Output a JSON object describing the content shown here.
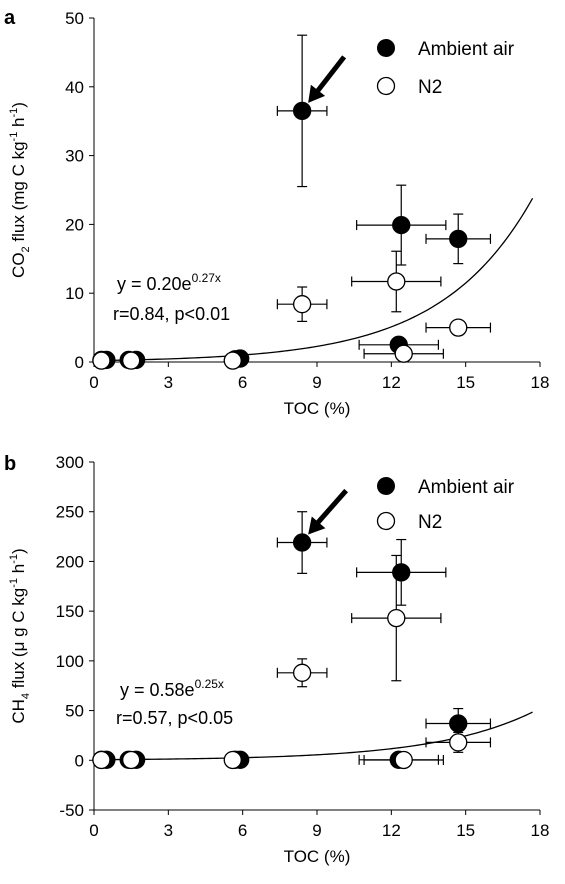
{
  "chart_data": [
    {
      "panel_label": "a",
      "type": "scatter",
      "xlabel": "TOC (%)",
      "ylabel_parts": [
        "CO",
        "2",
        " flux (mg C kg",
        "-1",
        " h",
        "-1",
        ")"
      ],
      "xlim": [
        0,
        18
      ],
      "ylim": [
        0,
        50
      ],
      "xticks": [
        0,
        3,
        6,
        9,
        12,
        15,
        18
      ],
      "yticks": [
        0,
        10,
        20,
        30,
        40,
        50
      ],
      "grid": false,
      "legend_placement": "top-right",
      "legend": [
        "Ambient air",
        "N2"
      ],
      "equation": {
        "prefix": "y = 0.20e",
        "superscript": "0.27x",
        "stats": "r=0.84, p<0.01"
      },
      "fit": {
        "a": 0.2,
        "b": 0.27,
        "x_range": [
          0.3,
          17.7
        ]
      },
      "arrow_at": [
        8.4,
        36.5
      ],
      "series": [
        {
          "name": "Ambient air",
          "marker": "filled",
          "points": [
            {
              "x": 0.3,
              "y": 0.3
            },
            {
              "x": 0.5,
              "y": 0.3
            },
            {
              "x": 1.4,
              "y": 0.3
            },
            {
              "x": 1.7,
              "y": 0.3
            },
            {
              "x": 5.7,
              "y": 0.4
            },
            {
              "x": 5.9,
              "y": 0.5
            },
            {
              "x": 8.4,
              "y": 36.5,
              "xerr": 1.0,
              "yerr": 11.0
            },
            {
              "x": 12.4,
              "y": 19.9,
              "xerr": 1.8,
              "yerr": 5.8
            },
            {
              "x": 14.7,
              "y": 17.9,
              "xerr": 1.3,
              "yerr": 3.6
            },
            {
              "x": 12.3,
              "y": 2.5,
              "xerr": 1.6,
              "yerr": 0.5
            }
          ]
        },
        {
          "name": "N2",
          "marker": "open",
          "points": [
            {
              "x": 0.3,
              "y": 0.2
            },
            {
              "x": 1.5,
              "y": 0.2
            },
            {
              "x": 5.6,
              "y": 0.2
            },
            {
              "x": 8.4,
              "y": 8.4,
              "xerr": 1.0,
              "yerr": 2.5
            },
            {
              "x": 12.2,
              "y": 11.7,
              "xerr": 1.8,
              "yerr": 4.4
            },
            {
              "x": 14.7,
              "y": 5.0,
              "xerr": 1.3,
              "yerr": 1.0
            },
            {
              "x": 12.5,
              "y": 1.2,
              "xerr": 1.6,
              "yerr": 0.8
            }
          ]
        }
      ]
    },
    {
      "panel_label": "b",
      "type": "scatter",
      "xlabel": "TOC (%)",
      "ylabel_parts": [
        "CH",
        "4",
        " flux (μ g C kg",
        "-1",
        " h",
        "-1",
        ")"
      ],
      "xlim": [
        0,
        18
      ],
      "ylim": [
        -50,
        300
      ],
      "xticks": [
        0,
        3,
        6,
        9,
        12,
        15,
        18
      ],
      "yticks": [
        -50,
        0,
        50,
        100,
        150,
        200,
        250,
        300
      ],
      "grid": false,
      "legend_placement": "top-right",
      "legend": [
        "Ambient air",
        "N2"
      ],
      "equation": {
        "prefix": "y = 0.58e",
        "superscript": "0.25x",
        "stats": "r=0.57, p<0.05"
      },
      "fit": {
        "a": 0.58,
        "b": 0.25,
        "x_range": [
          0.3,
          17.7
        ]
      },
      "arrow_at": [
        8.4,
        219
      ],
      "series": [
        {
          "name": "Ambient air",
          "marker": "filled",
          "points": [
            {
              "x": 0.3,
              "y": 0.5
            },
            {
              "x": 0.5,
              "y": 0.5
            },
            {
              "x": 1.4,
              "y": 0.5
            },
            {
              "x": 1.7,
              "y": 0.5
            },
            {
              "x": 5.7,
              "y": 0.5
            },
            {
              "x": 5.9,
              "y": 0.5
            },
            {
              "x": 8.4,
              "y": 219,
              "xerr": 1.0,
              "yerr": 31
            },
            {
              "x": 12.4,
              "y": 189,
              "xerr": 1.8,
              "yerr": 33
            },
            {
              "x": 14.7,
              "y": 37,
              "xerr": 1.3,
              "yerr": 15
            },
            {
              "x": 12.3,
              "y": 0.5,
              "xerr": 1.6
            }
          ]
        },
        {
          "name": "N2",
          "marker": "open",
          "points": [
            {
              "x": 0.3,
              "y": 0.3
            },
            {
              "x": 1.5,
              "y": 0.3
            },
            {
              "x": 5.6,
              "y": 0.3
            },
            {
              "x": 8.4,
              "y": 88,
              "xerr": 1.0,
              "yerr": 14
            },
            {
              "x": 12.2,
              "y": 143,
              "xerr": 1.8,
              "yerr": 63
            },
            {
              "x": 14.7,
              "y": 18,
              "xerr": 1.3,
              "yerr": 10
            },
            {
              "x": 12.5,
              "y": 0.3,
              "xerr": 1.6
            }
          ]
        }
      ]
    }
  ]
}
